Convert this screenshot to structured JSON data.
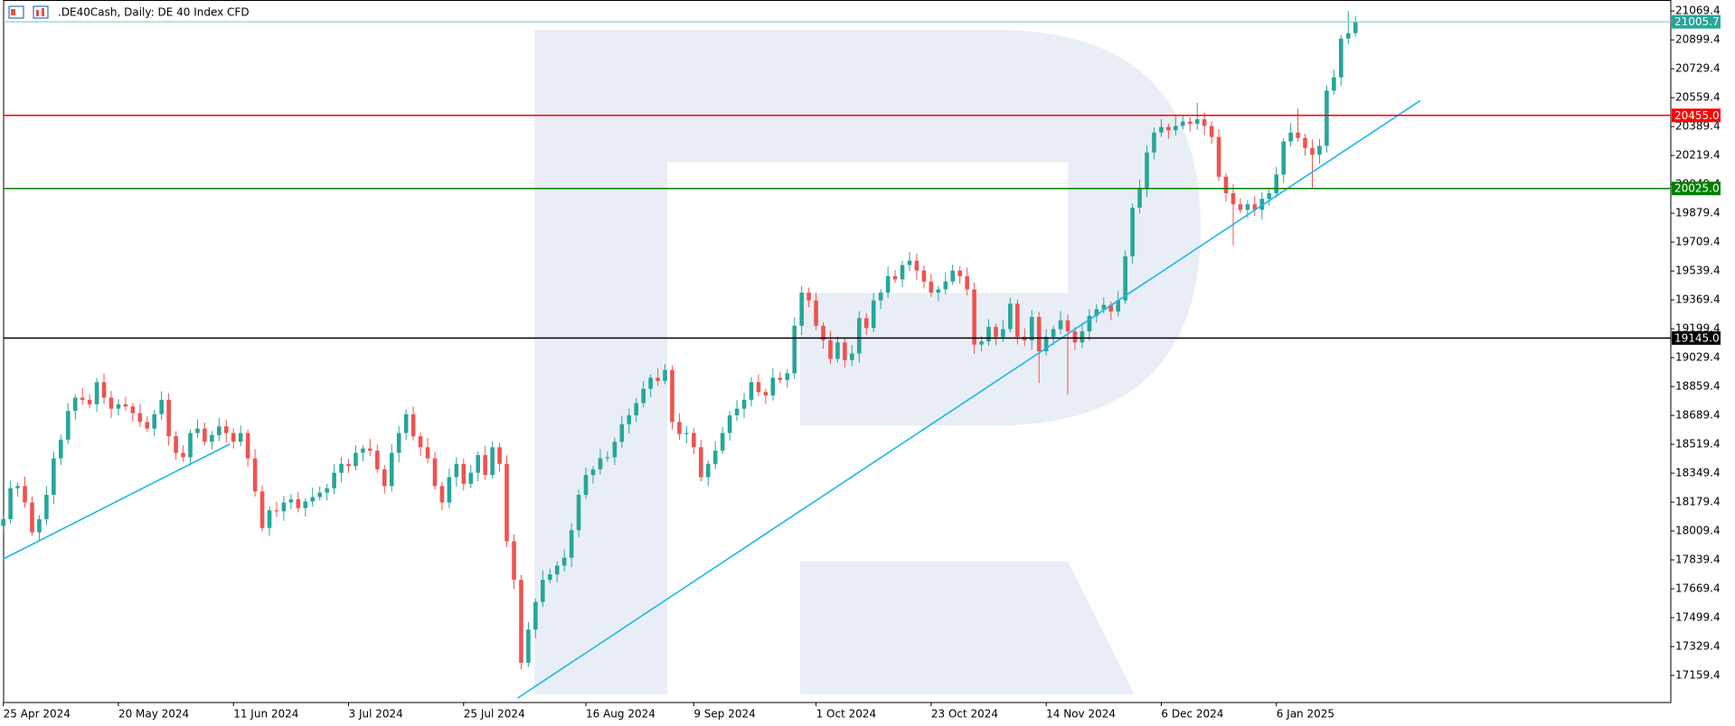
{
  "chart_data": {
    "type": "candlestick",
    "title": ".DE40Cash, Daily:  DE 40 Index CFD",
    "up_color": "#26a69a",
    "down_color": "#ef5350",
    "grid": false,
    "ylim": [
      17000,
      21134
    ],
    "yticks": [
      17159.4,
      17329.4,
      17499.4,
      17669.4,
      17839.4,
      18009.4,
      18179.4,
      18349.4,
      18519.4,
      18689.4,
      18859.4,
      19029.4,
      19199.4,
      19369.4,
      19539.4,
      19709.4,
      19879.4,
      20049.4,
      20219.4,
      20389.4,
      20559.4,
      20729.4,
      20899.4,
      21069.4
    ],
    "categories": [
      "25 Apr 2024",
      null,
      null,
      null,
      null,
      null,
      null,
      null,
      null,
      null,
      null,
      null,
      null,
      null,
      null,
      null,
      "20 May 2024",
      null,
      null,
      null,
      null,
      null,
      null,
      null,
      null,
      null,
      null,
      null,
      null,
      null,
      null,
      null,
      "11 Jun 2024",
      null,
      null,
      null,
      null,
      null,
      null,
      null,
      null,
      null,
      null,
      null,
      null,
      null,
      null,
      null,
      "3 Jul 2024",
      null,
      null,
      null,
      null,
      null,
      null,
      null,
      null,
      null,
      null,
      null,
      null,
      null,
      null,
      null,
      "25 Jul 2024",
      null,
      null,
      null,
      null,
      null,
      null,
      null,
      null,
      null,
      null,
      null,
      null,
      null,
      null,
      null,
      null,
      "16 Aug 2024",
      null,
      null,
      null,
      null,
      null,
      null,
      null,
      null,
      null,
      null,
      null,
      null,
      null,
      null,
      "9 Sep 2024",
      null,
      null,
      null,
      null,
      null,
      null,
      null,
      null,
      null,
      null,
      null,
      null,
      null,
      null,
      null,
      null,
      "1 Oct 2024",
      null,
      null,
      null,
      null,
      null,
      null,
      null,
      null,
      null,
      null,
      null,
      null,
      null,
      null,
      null,
      "23 Oct 2024",
      null,
      null,
      null,
      null,
      null,
      null,
      null,
      null,
      null,
      null,
      null,
      null,
      null,
      null,
      null,
      "14 Nov 2024",
      null,
      null,
      null,
      null,
      null,
      null,
      null,
      null,
      null,
      null,
      null,
      null,
      null,
      null,
      null,
      "6 Dec 2024",
      null,
      null,
      null,
      null,
      null,
      null,
      null,
      null,
      null,
      null,
      null,
      null,
      null,
      null,
      null,
      "6 Jan 2025",
      null,
      null,
      null,
      null,
      null,
      null,
      null,
      null,
      null,
      null,
      null
    ],
    "open": [
      18040,
      18079,
      18261,
      18274,
      18177,
      18001,
      18079,
      18222,
      18437,
      18547,
      18716,
      18794,
      18781,
      18755,
      18885,
      18794,
      18729,
      18755,
      18742,
      18703,
      18651,
      18612,
      18697,
      18781,
      18567,
      18469,
      18443,
      18586,
      18612,
      18534,
      18573,
      18625,
      18586,
      18534,
      18586,
      18437,
      18242,
      18027,
      18131,
      18125,
      18177,
      18196,
      18144,
      18183,
      18209,
      18235,
      18261,
      18352,
      18404,
      18391,
      18469,
      18495,
      18482,
      18372,
      18274,
      18469,
      18586,
      18697,
      18567,
      18502,
      18437,
      18274,
      18177,
      18326,
      18404,
      18287,
      18352,
      18456,
      18339,
      18502,
      18404,
      17949,
      17722,
      17234,
      17429,
      17592,
      17722,
      17754,
      17806,
      17852,
      18014,
      18222,
      18339,
      18372,
      18437,
      18443,
      18534,
      18638,
      18690,
      18762,
      18846,
      18911,
      18892,
      18957,
      18651,
      18580,
      18586,
      18502,
      18326,
      18404,
      18482,
      18586,
      18690,
      18729,
      18781,
      18885,
      18827,
      18807,
      18911,
      18898,
      18937,
      19217,
      19412,
      19366,
      19217,
      19132,
      19022,
      19119,
      19015,
      19054,
      19262,
      19204,
      19366,
      19412,
      19509,
      19490,
      19574,
      19600,
      19542,
      19477,
      19412,
      19431,
      19477,
      19542,
      19509,
      19431,
      19106,
      19125,
      19210,
      19152,
      19197,
      19347,
      19152,
      19132,
      19269,
      19067,
      19152,
      19197,
      19249,
      19184,
      19119,
      19184,
      19275,
      19314,
      19340,
      19301,
      19366,
      19626,
      19912,
      20029,
      20237,
      20354,
      20387,
      20367,
      20393,
      20419,
      20405,
      20432,
      20393,
      20328,
      20094,
      19997,
      19932,
      19899,
      19932,
      19899,
      19964,
      19997,
      20107,
      20302,
      20354,
      20322,
      20263,
      20224,
      20276,
      20601,
      20679,
      20907,
      20939
    ],
    "high": [
      18109,
      18306,
      18294,
      18329,
      18212,
      18104,
      18272,
      18477,
      18577,
      18761,
      18814,
      18849,
      18816,
      18910,
      18935,
      18834,
      18785,
      18800,
      18762,
      18758,
      18686,
      18722,
      18831,
      18821,
      18597,
      18514,
      18606,
      18667,
      18647,
      18598,
      18675,
      18665,
      18616,
      18631,
      18606,
      18492,
      18277,
      18156,
      18181,
      18217,
      18226,
      18241,
      18203,
      18264,
      18270,
      18286,
      18402,
      18444,
      18434,
      18514,
      18515,
      18550,
      18517,
      18397,
      18519,
      18626,
      18727,
      18742,
      18587,
      18557,
      18472,
      18299,
      18376,
      18444,
      18434,
      18397,
      18476,
      18511,
      18537,
      18527,
      18454,
      17989,
      17752,
      17474,
      17612,
      17777,
      17789,
      17831,
      17902,
      18054,
      18252,
      18384,
      18392,
      18492,
      18478,
      18559,
      18688,
      18730,
      18792,
      18891,
      18931,
      18966,
      18992,
      18982,
      18701,
      18626,
      18616,
      18547,
      18424,
      18537,
      18621,
      18715,
      18779,
      18821,
      18915,
      18930,
      18847,
      18966,
      18946,
      18962,
      19267,
      19452,
      19442,
      19411,
      19237,
      19187,
      19154,
      19144,
      19104,
      19302,
      19292,
      19411,
      19432,
      19564,
      19544,
      19599,
      19650,
      19640,
      19572,
      19522,
      19451,
      19532,
      19577,
      19567,
      19559,
      19471,
      19155,
      19255,
      19230,
      19252,
      19382,
      19372,
      19202,
      19309,
      19299,
      19197,
      19217,
      19304,
      19284,
      19209,
      19234,
      19315,
      19344,
      19385,
      19360,
      19421,
      19661,
      19937,
      20079,
      20277,
      20384,
      20432,
      20407,
      20448,
      20454,
      20444,
      20530,
      20472,
      20423,
      20373,
      20114,
      20052,
      19967,
      19957,
      19982,
      20004,
      20027,
      20152,
      20322,
      20409,
      20495,
      20347,
      20313,
      20316,
      20631,
      20724,
      20927,
      21069,
      21041
    ],
    "low": [
      18000,
      18054,
      18211,
      18147,
      17981,
      17956,
      18044,
      18167,
      18397,
      18522,
      18666,
      18751,
      18735,
      18710,
      18759,
      18674,
      18689,
      18717,
      18653,
      18621,
      18592,
      18567,
      18662,
      18512,
      18429,
      18418,
      18393,
      18556,
      18514,
      18489,
      18538,
      18531,
      18494,
      18509,
      18387,
      18212,
      18007,
      17982,
      18090,
      18070,
      18137,
      18119,
      18094,
      18153,
      18189,
      18190,
      18226,
      18297,
      18351,
      18366,
      18419,
      18452,
      18352,
      18229,
      18239,
      18414,
      18546,
      18542,
      18452,
      18407,
      18254,
      18132,
      18142,
      18271,
      18247,
      18262,
      18302,
      18309,
      18319,
      18359,
      17914,
      17667,
      17194,
      17209,
      17379,
      17562,
      17702,
      17709,
      17771,
      17797,
      17974,
      18197,
      18289,
      18342,
      18417,
      18398,
      18499,
      18583,
      18650,
      18737,
      18796,
      18862,
      18872,
      18606,
      18545,
      18525,
      18462,
      18301,
      18276,
      18374,
      18462,
      18541,
      18655,
      18674,
      18741,
      18802,
      18757,
      18777,
      18878,
      18853,
      18902,
      19162,
      19326,
      19192,
      19082,
      18992,
      19002,
      18970,
      18980,
      18999,
      19164,
      19179,
      19316,
      19382,
      19470,
      19445,
      19539,
      19487,
      19437,
      19387,
      19362,
      19401,
      19457,
      19464,
      19396,
      19051,
      19066,
      19100,
      19102,
      19122,
      19177,
      19107,
      19097,
      19077,
      18880,
      19042,
      19102,
      19167,
      18810,
      19074,
      19084,
      19129,
      19235,
      19289,
      19251,
      19271,
      19346,
      19581,
      19877,
      19974,
      20197,
      20329,
      20317,
      20337,
      20373,
      20360,
      20370,
      20338,
      20288,
      20069,
      19947,
      19690,
      19879,
      19854,
      19864,
      19844,
      19924,
      19972,
      20057,
      20272,
      20302,
      20218,
      20030,
      20169,
      20236,
      20576,
      20629,
      20877,
      20919
    ],
    "close": [
      18079,
      18261,
      18274,
      18177,
      18001,
      18079,
      18222,
      18437,
      18547,
      18716,
      18794,
      18781,
      18755,
      18885,
      18794,
      18729,
      18755,
      18742,
      18703,
      18651,
      18612,
      18697,
      18781,
      18567,
      18469,
      18443,
      18586,
      18612,
      18534,
      18573,
      18625,
      18586,
      18534,
      18586,
      18437,
      18242,
      18027,
      18131,
      18125,
      18177,
      18196,
      18144,
      18183,
      18209,
      18235,
      18261,
      18352,
      18404,
      18391,
      18469,
      18495,
      18482,
      18372,
      18274,
      18469,
      18586,
      18697,
      18567,
      18502,
      18437,
      18274,
      18177,
      18326,
      18404,
      18287,
      18352,
      18456,
      18339,
      18502,
      18404,
      17949,
      17722,
      17234,
      17429,
      17592,
      17722,
      17754,
      17806,
      17852,
      18014,
      18222,
      18339,
      18372,
      18437,
      18443,
      18534,
      18638,
      18690,
      18762,
      18846,
      18911,
      18892,
      18957,
      18651,
      18580,
      18586,
      18502,
      18326,
      18404,
      18482,
      18586,
      18690,
      18729,
      18781,
      18885,
      18827,
      18807,
      18911,
      18898,
      18937,
      19217,
      19412,
      19366,
      19217,
      19132,
      19022,
      19119,
      19015,
      19054,
      19262,
      19204,
      19366,
      19412,
      19509,
      19490,
      19574,
      19600,
      19542,
      19477,
      19412,
      19431,
      19477,
      19542,
      19509,
      19431,
      19106,
      19125,
      19210,
      19152,
      19197,
      19347,
      19152,
      19132,
      19269,
      19067,
      19152,
      19197,
      19249,
      19184,
      19119,
      19184,
      19275,
      19314,
      19340,
      19301,
      19366,
      19626,
      19912,
      20029,
      20237,
      20354,
      20387,
      20367,
      20393,
      20419,
      20405,
      20432,
      20393,
      20328,
      20094,
      19997,
      19932,
      19899,
      19932,
      19899,
      19964,
      19997,
      20107,
      20302,
      20354,
      20322,
      20263,
      20224,
      20276,
      20601,
      20679,
      20907,
      20939,
      21005.7
    ],
    "current_price": {
      "value": 21005.7,
      "color": "#26a69a",
      "line_color": "#8fd3cc"
    },
    "levels": [
      {
        "value": 20455,
        "label": "20455.0",
        "color": "#ff0000"
      },
      {
        "value": 20025,
        "label": "20025.0",
        "color": "#008000"
      },
      {
        "value": 19145,
        "label": "19145.0",
        "color": "#000000"
      }
    ],
    "trendlines": [
      {
        "x": [
          0,
          31.5
        ],
        "y": [
          17845,
          18521
        ],
        "color": "#1ab6ef"
      },
      {
        "x": [
          71.5,
          197
        ],
        "y": [
          17026,
          20542
        ],
        "color": "#1ab6ef"
      }
    ]
  }
}
